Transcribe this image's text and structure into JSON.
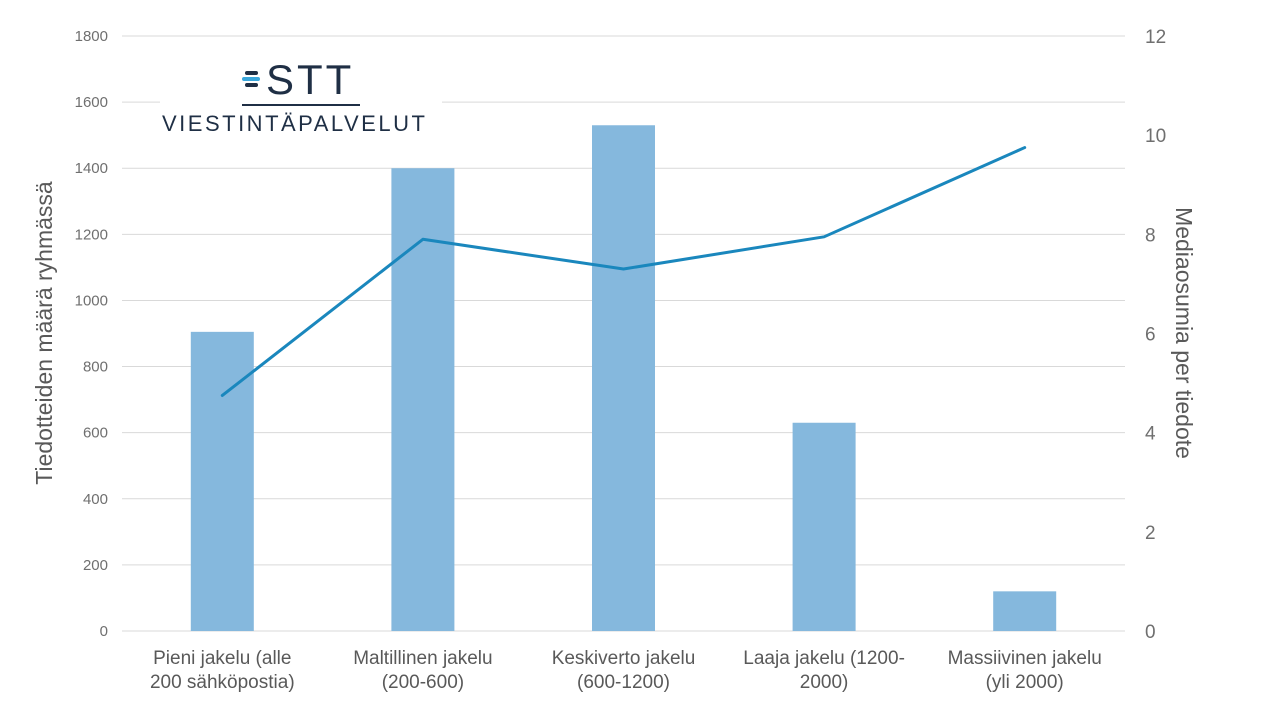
{
  "logo": {
    "wordmark": "STT",
    "tagline": "VIESTINTÄPALVELUT"
  },
  "colors": {
    "bar": "#85b8dd",
    "line": "#1a87bd",
    "grid": "#d9d9d9",
    "logo": "#1f2f45"
  },
  "chart_data": {
    "type": "bar",
    "combo": "bar-line",
    "categories": [
      [
        "Pieni jakelu (alle",
        "200 sähköpostia)"
      ],
      [
        "Maltillinen jakelu",
        "(200-600)"
      ],
      [
        "Keskiverto jakelu",
        "(600-1200)"
      ],
      [
        "Laaja jakelu (1200-",
        "2000)"
      ],
      [
        "Massiivinen jakelu",
        "(yli 2000)"
      ]
    ],
    "series": [
      {
        "type": "bar",
        "axis": "left",
        "values": [
          905,
          1400,
          1530,
          630,
          120
        ]
      },
      {
        "type": "line",
        "axis": "right",
        "values": [
          4.75,
          7.9,
          7.3,
          7.95,
          9.75
        ]
      }
    ],
    "ylabel": "Tiedotteiden määrä ryhmässä",
    "y2label": "Mediaosumia per tiedote",
    "ylim": [
      0,
      1800
    ],
    "yticks": [
      0,
      200,
      400,
      600,
      800,
      1000,
      1200,
      1400,
      1600,
      1800
    ],
    "y2lim": [
      0,
      12
    ],
    "y2ticks": [
      0,
      2,
      4,
      6,
      8,
      10,
      12
    ],
    "grid": true,
    "legend": "none"
  }
}
